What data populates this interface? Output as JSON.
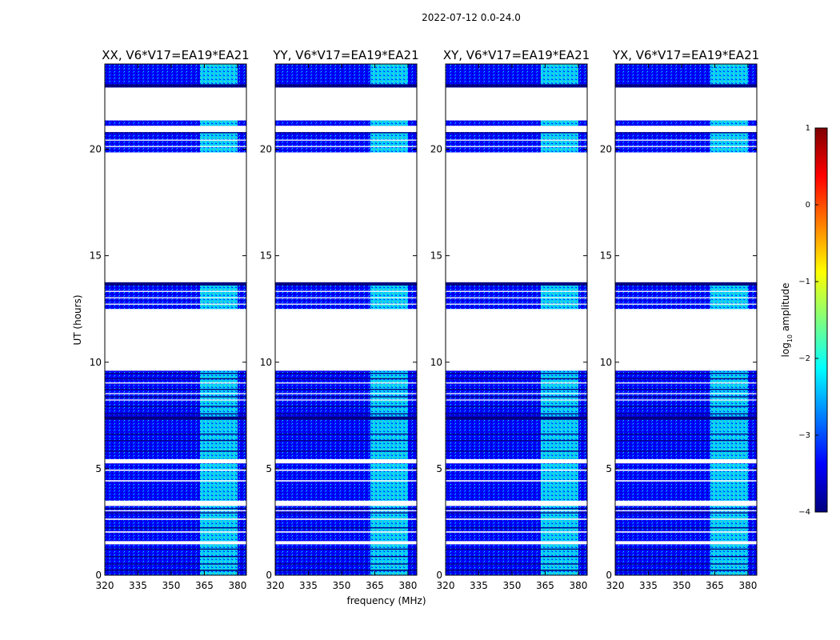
{
  "figure_title": "2022-07-12 0.0-24.0",
  "chart_data": {
    "type": "heatmap",
    "title": "2022-07-12 0.0-24.0",
    "xlabel": "frequency (MHz)",
    "ylabel": "UT (hours)",
    "xlim": [
      320,
      384
    ],
    "ylim": [
      0,
      24
    ],
    "x_ticks": [
      "320",
      "335",
      "350",
      "365",
      "380"
    ],
    "y_ticks": [
      "0",
      "5",
      "10",
      "15",
      "20"
    ],
    "colorbar": {
      "label_prefix": "log",
      "label_sub": "10",
      "label_suffix": " amplitude",
      "range": [
        -4,
        1
      ],
      "ticks": [
        "1",
        "0",
        "−1",
        "−2",
        "−3",
        "−4"
      ],
      "colors": [
        "#00007f",
        "#0000ff",
        "#007fff",
        "#00ffff",
        "#7fff7f",
        "#ffff00",
        "#ff7f00",
        "#ff0000",
        "#7f0000"
      ]
    },
    "panels": [
      {
        "title": "XX, V6*V17=EA19*EA21"
      },
      {
        "title": "YY, V6*V17=EA19*EA21"
      },
      {
        "title": "XY, V6*V17=EA19*EA21"
      },
      {
        "title": "YX, V6*V17=EA19*EA21"
      }
    ],
    "data_blocks_ut": [
      [
        0,
        1.45
      ],
      [
        1.6,
        3.25
      ],
      [
        3.5,
        5.25
      ],
      [
        5.45,
        9.6
      ],
      [
        12.5,
        13.75
      ],
      [
        19.85,
        20.8
      ],
      [
        21.1,
        21.35
      ],
      [
        22.9,
        24
      ]
    ],
    "white_gaps_ut": [
      [
        2.0,
        2.06
      ],
      [
        2.6,
        2.66
      ],
      [
        3.0,
        3.05
      ],
      [
        4.4,
        4.46
      ],
      [
        4.9,
        4.96
      ],
      [
        8.2,
        8.25
      ],
      [
        8.5,
        8.55
      ],
      [
        9.0,
        9.05
      ],
      [
        12.7,
        12.75
      ],
      [
        13.0,
        13.05
      ],
      [
        13.3,
        13.35
      ],
      [
        20.1,
        20.15
      ],
      [
        20.4,
        20.45
      ]
    ],
    "dark_rows_ut": [
      [
        0.2,
        0.26
      ],
      [
        0.5,
        0.55
      ],
      [
        0.85,
        0.9
      ],
      [
        1.2,
        1.25
      ],
      [
        2.2,
        2.25
      ],
      [
        2.9,
        2.95
      ],
      [
        3.1,
        3.15
      ],
      [
        5.8,
        5.85
      ],
      [
        6.3,
        6.35
      ],
      [
        6.6,
        6.65
      ],
      [
        7.3,
        7.45
      ],
      [
        7.55,
        7.6
      ],
      [
        7.9,
        7.95
      ],
      [
        8.35,
        8.4
      ],
      [
        8.7,
        8.75
      ],
      [
        9.2,
        9.25
      ],
      [
        9.45,
        9.5
      ],
      [
        13.6,
        13.75
      ],
      [
        20.75,
        20.8
      ],
      [
        22.9,
        23.05
      ]
    ],
    "bright_band_mhz": [
      363,
      380
    ],
    "background_log_amplitude": -3.1,
    "band_log_amplitude": -2.4
  }
}
